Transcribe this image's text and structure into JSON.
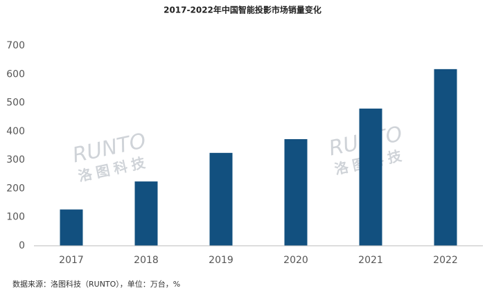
{
  "chart_data": {
    "type": "bar",
    "title": "2017-2022年中国智能投影市场销量变化",
    "categories": [
      "2017",
      "2018",
      "2019",
      "2020",
      "2021",
      "2022"
    ],
    "values": [
      127,
      225,
      325,
      373,
      480,
      618
    ],
    "color": "#12507f",
    "ylim": [
      0,
      700
    ],
    "yticks": [
      0,
      100,
      200,
      300,
      400,
      500,
      600,
      700
    ],
    "grid": false,
    "source": "数据来源：洛图科技（RUNTO），单位：万台，%",
    "watermark": {
      "brand": "RUNTO",
      "name": "洛图科技"
    }
  }
}
